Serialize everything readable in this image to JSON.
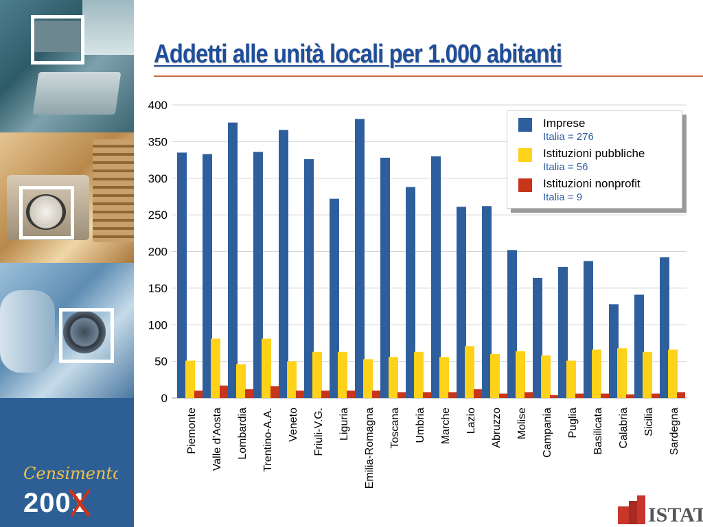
{
  "title": "Addetti alle unità locali per 1.000 abitanti",
  "chart_data": {
    "type": "bar",
    "categories": [
      "Piemonte",
      "Valle d’Aosta",
      "Lombardia",
      "Trentino-A.A.",
      "Veneto",
      "Friuli-V.G.",
      "Liguria",
      "Emilia-Romagna",
      "Toscana",
      "Umbria",
      "Marche",
      "Lazio",
      "Abruzzo",
      "Molise",
      "Campania",
      "Puglia",
      "Basilicata",
      "Calabria",
      "Sicilia",
      "Sardegna"
    ],
    "series": [
      {
        "name": "Imprese",
        "note": "Italia = 276",
        "color": "#2e5f9c",
        "values": [
          335,
          333,
          376,
          336,
          366,
          326,
          272,
          381,
          328,
          288,
          330,
          261,
          262,
          202,
          164,
          179,
          187,
          128,
          141,
          192
        ]
      },
      {
        "name": "Istituzioni pubbliche",
        "note": "Italia = 56",
        "color": "#ffd21a",
        "values": [
          51,
          81,
          46,
          81,
          50,
          63,
          63,
          53,
          56,
          63,
          56,
          71,
          60,
          64,
          58,
          51,
          66,
          68,
          63,
          66
        ]
      },
      {
        "name": "Istituzioni nonprofit",
        "note": "Italia = 9",
        "color": "#c8351b",
        "values": [
          10,
          17,
          12,
          16,
          10,
          10,
          10,
          10,
          8,
          8,
          8,
          12,
          6,
          8,
          4,
          6,
          6,
          5,
          6,
          8
        ]
      }
    ],
    "ylim": [
      0,
      400
    ],
    "yticks": [
      0,
      50,
      100,
      150,
      200,
      250,
      300,
      350,
      400
    ],
    "ytick_labels": [
      "0",
      "50",
      "100",
      "150",
      "200",
      "250",
      "300",
      "350",
      "400"
    ],
    "grid": true,
    "legend_position": "top-right"
  },
  "branding": {
    "census_logo_text": "Censimento",
    "census_year": "2001",
    "istat_logo_text": "ISTAT"
  },
  "colors": {
    "title": "#1f4e9a",
    "title_rule": "#c8683b",
    "sidebar": "#2d5f95",
    "istat": "#c8352b"
  }
}
